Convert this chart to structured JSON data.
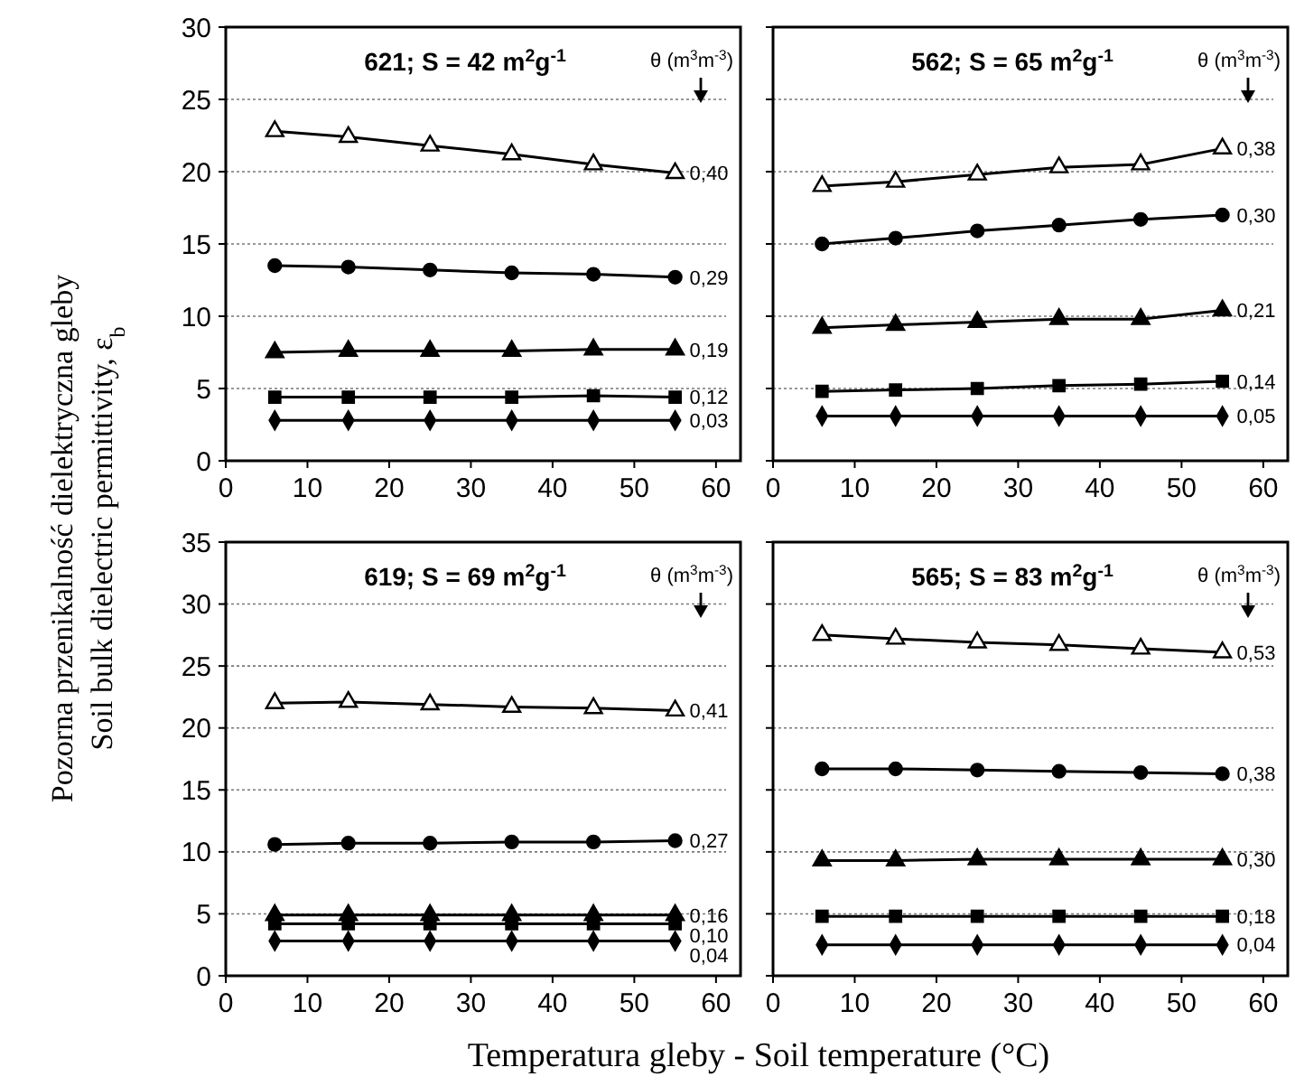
{
  "chart_data": [
    {
      "type": "line",
      "title": "621; S = 42 m$^{2}$g$^{-1}$",
      "legend_title": "θ (m$^{3}$m$^{-3}$)",
      "ylabel": "Pozorna przenikalność dielektryczna gleby\nSoil bulk dielectric permittivity, ε$_{b}$",
      "x": [
        6,
        15,
        25,
        35,
        45,
        55
      ],
      "xlim": [
        0,
        63
      ],
      "xticks": [
        0,
        10,
        20,
        30,
        40,
        50,
        60
      ],
      "ylim": [
        0,
        30
      ],
      "yticks": [
        0,
        5,
        10,
        15,
        20,
        25,
        30
      ],
      "grid": "y",
      "series": [
        {
          "name": "0,40",
          "color": "#000000",
          "marker": "triangle",
          "values": [
            22.8,
            22.4,
            21.8,
            21.2,
            20.5,
            19.9
          ]
        },
        {
          "name": "0,29",
          "color": "#000000",
          "marker": "circle",
          "values": [
            13.5,
            13.4,
            13.2,
            13.0,
            12.9,
            12.7
          ]
        },
        {
          "name": "0,19",
          "color": "#000000",
          "marker": "triangle",
          "values": [
            7.5,
            7.6,
            7.6,
            7.6,
            7.7,
            7.7
          ]
        },
        {
          "name": "0,12",
          "color": "#000000",
          "marker": "square",
          "values": [
            4.4,
            4.4,
            4.4,
            4.4,
            4.5,
            4.4
          ]
        },
        {
          "name": "0,03",
          "color": "#000000",
          "marker": "diamond",
          "values": [
            2.8,
            2.8,
            2.8,
            2.8,
            2.8,
            2.8
          ]
        }
      ]
    },
    {
      "type": "line",
      "title": "562; S = 65 m$^{2}$g$^{-1}$",
      "legend_title": "θ (m$^{3}$m$^{-3}$)",
      "x": [
        6,
        15,
        25,
        35,
        45,
        55
      ],
      "xlim": [
        0,
        63
      ],
      "xticks": [
        0,
        10,
        20,
        30,
        40,
        50,
        60
      ],
      "ylim": [
        0,
        30
      ],
      "yticks": [
        0,
        5,
        10,
        15,
        20,
        25,
        30
      ],
      "grid": "y",
      "tick_labels": "x",
      "series": [
        {
          "name": "0,38",
          "color": "#000000",
          "marker": "triangle",
          "values": [
            19.0,
            19.3,
            19.8,
            20.3,
            20.5,
            21.6
          ]
        },
        {
          "name": "0,30",
          "color": "#000000",
          "marker": "circle",
          "values": [
            15.0,
            15.4,
            15.9,
            16.3,
            16.7,
            17.0
          ]
        },
        {
          "name": "0,21",
          "color": "#000000",
          "marker": "triangle",
          "values": [
            9.2,
            9.4,
            9.6,
            9.8,
            9.8,
            10.4
          ]
        },
        {
          "name": "0,14",
          "color": "#000000",
          "marker": "square",
          "values": [
            4.8,
            4.9,
            5.0,
            5.2,
            5.3,
            5.5
          ]
        },
        {
          "name": "0,05",
          "color": "#000000",
          "marker": "diamond",
          "values": [
            3.1,
            3.1,
            3.1,
            3.1,
            3.1,
            3.1
          ]
        }
      ]
    },
    {
      "type": "line",
      "title": "619; S = 69 m$^{2}$g$^{-1}$",
      "legend_title": "θ (m$^{3}$m$^{-3}$)",
      "xlabel": "Temperatura gleby - Soil temperature (°C)",
      "x": [
        6,
        15,
        25,
        35,
        45,
        55
      ],
      "xlim": [
        0,
        63
      ],
      "xticks": [
        0,
        10,
        20,
        30,
        40,
        50,
        60
      ],
      "ylim": [
        0,
        35
      ],
      "yticks": [
        0,
        5,
        10,
        15,
        20,
        25,
        30,
        35
      ],
      "grid": "y",
      "series": [
        {
          "name": "0,41",
          "color": "#000000",
          "marker": "triangle",
          "values": [
            22.0,
            22.1,
            21.9,
            21.7,
            21.6,
            21.4
          ]
        },
        {
          "name": "0,27",
          "color": "#000000",
          "marker": "circle",
          "values": [
            10.6,
            10.7,
            10.7,
            10.8,
            10.8,
            10.9
          ]
        },
        {
          "name": "0,16",
          "color": "#000000",
          "marker": "triangle",
          "values": [
            4.9,
            4.9,
            4.9,
            4.9,
            4.9,
            4.9
          ]
        },
        {
          "name": "0,10",
          "color": "#000000",
          "marker": "square",
          "values": [
            4.2,
            4.2,
            4.2,
            4.2,
            4.2,
            4.2
          ]
        },
        {
          "name": "0,04",
          "color": "#000000",
          "marker": "diamond",
          "values": [
            2.8,
            2.8,
            2.8,
            2.8,
            2.8,
            2.8
          ]
        }
      ]
    },
    {
      "type": "line",
      "title": "565; S = 83 m$^{2}$g$^{-1}$",
      "legend_title": "θ (m$^{3}$m$^{-3}$)",
      "x": [
        6,
        15,
        25,
        35,
        45,
        55
      ],
      "xlim": [
        0,
        63
      ],
      "xticks": [
        0,
        10,
        20,
        30,
        40,
        50,
        60
      ],
      "ylim": [
        0,
        35
      ],
      "yticks": [
        0,
        5,
        10,
        15,
        20,
        25,
        30,
        35
      ],
      "grid": "y",
      "tick_labels": "x",
      "series": [
        {
          "name": "0,53",
          "color": "#000000",
          "marker": "triangle",
          "values": [
            27.5,
            27.2,
            26.9,
            26.7,
            26.4,
            26.1
          ]
        },
        {
          "name": "0,38",
          "color": "#000000",
          "marker": "circle",
          "values": [
            16.7,
            16.7,
            16.6,
            16.5,
            16.4,
            16.3
          ]
        },
        {
          "name": "0,30",
          "color": "#000000",
          "marker": "triangle",
          "values": [
            9.3,
            9.3,
            9.4,
            9.4,
            9.4,
            9.4
          ]
        },
        {
          "name": "0,18",
          "color": "#000000",
          "marker": "square",
          "values": [
            4.8,
            4.8,
            4.8,
            4.8,
            4.8,
            4.8
          ]
        },
        {
          "name": "0,04",
          "color": "#000000",
          "marker": "diamond",
          "values": [
            2.5,
            2.5,
            2.5,
            2.5,
            2.5,
            2.5
          ]
        }
      ]
    }
  ]
}
